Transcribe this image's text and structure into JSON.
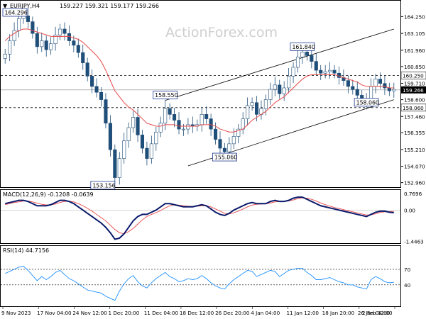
{
  "header": {
    "symbol": "EURJPY,H4",
    "ohlc": "159.227 159.321 159.177 159.266"
  },
  "watermark": "ActionForex.com",
  "colors": {
    "candle": "#1f4e79",
    "ma": "#e8484a",
    "macd": "#0a1a6b",
    "signal": "#e8484a",
    "rsi": "#1e90ff",
    "level_box_border": "#1f3a93",
    "axis_text": "#000000",
    "current_price_bg": "#000000"
  },
  "chart_data": [
    {
      "type": "candlestick",
      "name": "price",
      "y_ticks": [
        "164.250",
        "163.105",
        "161.960",
        "160.850",
        "159.710",
        "158.600",
        "157.460",
        "156.355",
        "155.210",
        "154.070",
        "152.960"
      ],
      "x_labels": [
        "9 Nov 2023",
        "17 Nov 04:00",
        "24 Nov 12:00",
        "1 Dec 20:00",
        "11 Dec 04:00",
        "18 Dec 12:00",
        "26 Dec 20:00",
        "4 Jan 04:00",
        "11 Jan 12:00",
        "18 Jan 20:00",
        "26 Jan 04:00",
        "2 Feb 12:00"
      ],
      "ylim": [
        152.75,
        164.7
      ],
      "current_price": "159.266",
      "current_price_value": 159.266,
      "closes": [
        161.7,
        162.6,
        163.3,
        164.1,
        164.29,
        163.9,
        163.1,
        162.2,
        162.6,
        162.0,
        162.4,
        163.0,
        163.4,
        163.1,
        162.6,
        162.3,
        161.8,
        161.1,
        160.2,
        159.5,
        159.1,
        158.6,
        157.0,
        155.2,
        153.3,
        154.6,
        155.8,
        156.7,
        157.4,
        156.2,
        155.3,
        154.6,
        155.6,
        156.4,
        157.0,
        158.0,
        157.6,
        157.2,
        156.6,
        156.6,
        156.9,
        156.8,
        156.9,
        157.6,
        157.3,
        156.6,
        155.9,
        155.3,
        155.06,
        155.6,
        156.1,
        156.6,
        157.3,
        158.2,
        158.4,
        157.6,
        158.0,
        158.6,
        159.3,
        159.6,
        159.0,
        159.4,
        160.2,
        160.8,
        161.5,
        161.84,
        161.6,
        161.2,
        160.6,
        160.4,
        160.5,
        160.6,
        160.4,
        160.1,
        159.9,
        159.5,
        159.3,
        158.9,
        158.6,
        158.4,
        159.5,
        160.0,
        159.7,
        159.4,
        159.2,
        159.3
      ],
      "ma_values": [
        162.6,
        162.9,
        163.1,
        163.3,
        163.4,
        163.4,
        163.3,
        163.2,
        163.1,
        163.0,
        162.9,
        162.9,
        162.9,
        162.9,
        162.9,
        162.8,
        162.7,
        162.5,
        162.2,
        161.9,
        161.6,
        161.2,
        160.6,
        159.9,
        159.2,
        158.8,
        158.4,
        158.1,
        157.9,
        157.6,
        157.3,
        157.0,
        156.9,
        156.8,
        156.8,
        156.9,
        156.9,
        156.9,
        156.8,
        156.8,
        156.8,
        156.8,
        156.8,
        156.9,
        156.9,
        156.9,
        156.8,
        156.6,
        156.5,
        156.4,
        156.4,
        156.5,
        156.6,
        156.9,
        157.2,
        157.4,
        157.6,
        157.8,
        158.1,
        158.4,
        158.6,
        158.8,
        159.1,
        159.4,
        159.7,
        160.0,
        160.2,
        160.3,
        160.3,
        160.3,
        160.3,
        160.3,
        160.3,
        160.2,
        160.1,
        160.0,
        159.9,
        159.8,
        159.6,
        159.5,
        159.5,
        159.5,
        159.5,
        159.5,
        159.4,
        159.4
      ],
      "levels": [
        {
          "value": 160.25,
          "label": "160.250"
        },
        {
          "value": 158.06,
          "label": "158.060"
        }
      ],
      "annotations": [
        {
          "label": "164.296",
          "x_index": 4,
          "value": 164.296
        },
        {
          "label": "153.156",
          "x_index": 24,
          "value": 153.156
        },
        {
          "label": "158.550",
          "x_index": 35,
          "value": 158.55
        },
        {
          "label": "155.060",
          "x_index": 48,
          "value": 155.06
        },
        {
          "label": "161.840",
          "x_index": 65,
          "value": 161.84
        },
        {
          "label": "158.060",
          "x_index": 79,
          "value": 158.06
        }
      ],
      "channel": {
        "upper": {
          "from": {
            "x_index": 35,
            "value": 158.55
          },
          "to": {
            "x_index": 85,
            "value": 163.4
          }
        },
        "lower": {
          "from": {
            "x_index": 40,
            "value": 154.1
          },
          "to": {
            "x_index": 85,
            "value": 158.6
          }
        }
      }
    },
    {
      "type": "line",
      "name": "macd",
      "header": "MACD(12,26,9) -0.1208 -0.0639",
      "y_ticks": [
        "0.7696",
        "0.00",
        "-1.4463"
      ],
      "ylim": [
        -1.5,
        0.8
      ],
      "macd": [
        0.3,
        0.35,
        0.4,
        0.45,
        0.45,
        0.4,
        0.3,
        0.2,
        0.2,
        0.2,
        0.25,
        0.35,
        0.45,
        0.45,
        0.4,
        0.3,
        0.15,
        0.0,
        -0.15,
        -0.3,
        -0.45,
        -0.6,
        -0.8,
        -1.05,
        -1.35,
        -1.3,
        -1.1,
        -0.8,
        -0.5,
        -0.3,
        -0.2,
        -0.2,
        -0.1,
        0.0,
        0.15,
        0.3,
        0.3,
        0.25,
        0.2,
        0.15,
        0.15,
        0.15,
        0.2,
        0.25,
        0.2,
        0.05,
        -0.1,
        -0.2,
        -0.25,
        -0.15,
        0.0,
        0.1,
        0.2,
        0.3,
        0.35,
        0.3,
        0.3,
        0.3,
        0.4,
        0.45,
        0.4,
        0.4,
        0.45,
        0.55,
        0.6,
        0.6,
        0.5,
        0.4,
        0.3,
        0.2,
        0.15,
        0.1,
        0.05,
        0.0,
        -0.05,
        -0.1,
        -0.15,
        -0.2,
        -0.25,
        -0.3,
        -0.2,
        -0.1,
        -0.05,
        -0.05,
        -0.1,
        -0.12
      ],
      "signal": [
        0.25,
        0.3,
        0.35,
        0.38,
        0.42,
        0.42,
        0.38,
        0.32,
        0.27,
        0.24,
        0.24,
        0.28,
        0.35,
        0.4,
        0.41,
        0.38,
        0.3,
        0.2,
        0.08,
        -0.05,
        -0.2,
        -0.35,
        -0.5,
        -0.7,
        -0.9,
        -1.05,
        -1.1,
        -1.0,
        -0.85,
        -0.65,
        -0.45,
        -0.3,
        -0.2,
        -0.12,
        -0.02,
        0.1,
        0.2,
        0.24,
        0.23,
        0.2,
        0.18,
        0.17,
        0.18,
        0.2,
        0.2,
        0.15,
        0.05,
        -0.05,
        -0.15,
        -0.18,
        -0.12,
        -0.05,
        0.05,
        0.15,
        0.23,
        0.27,
        0.28,
        0.29,
        0.33,
        0.38,
        0.4,
        0.4,
        0.42,
        0.47,
        0.53,
        0.57,
        0.55,
        0.5,
        0.42,
        0.33,
        0.25,
        0.18,
        0.12,
        0.07,
        0.02,
        -0.03,
        -0.08,
        -0.13,
        -0.18,
        -0.23,
        -0.22,
        -0.17,
        -0.11,
        -0.08,
        -0.07,
        -0.06
      ]
    },
    {
      "type": "line",
      "name": "rsi",
      "header": "RSI(14) 44.7156",
      "y_ticks": [
        "70",
        "40"
      ],
      "ylim": [
        0,
        100
      ],
      "levels": [
        70,
        40
      ],
      "values": [
        62,
        66,
        70,
        74,
        76,
        68,
        58,
        48,
        56,
        50,
        56,
        64,
        68,
        60,
        52,
        48,
        42,
        36,
        30,
        28,
        26,
        24,
        18,
        14,
        10,
        28,
        42,
        52,
        58,
        46,
        38,
        34,
        44,
        52,
        58,
        64,
        56,
        52,
        46,
        48,
        52,
        50,
        52,
        58,
        52,
        44,
        38,
        34,
        32,
        42,
        50,
        56,
        62,
        68,
        66,
        56,
        60,
        64,
        68,
        66,
        56,
        62,
        68,
        70,
        72,
        72,
        64,
        58,
        50,
        50,
        52,
        54,
        50,
        46,
        44,
        40,
        40,
        36,
        34,
        32,
        50,
        56,
        52,
        46,
        44,
        45
      ]
    }
  ]
}
